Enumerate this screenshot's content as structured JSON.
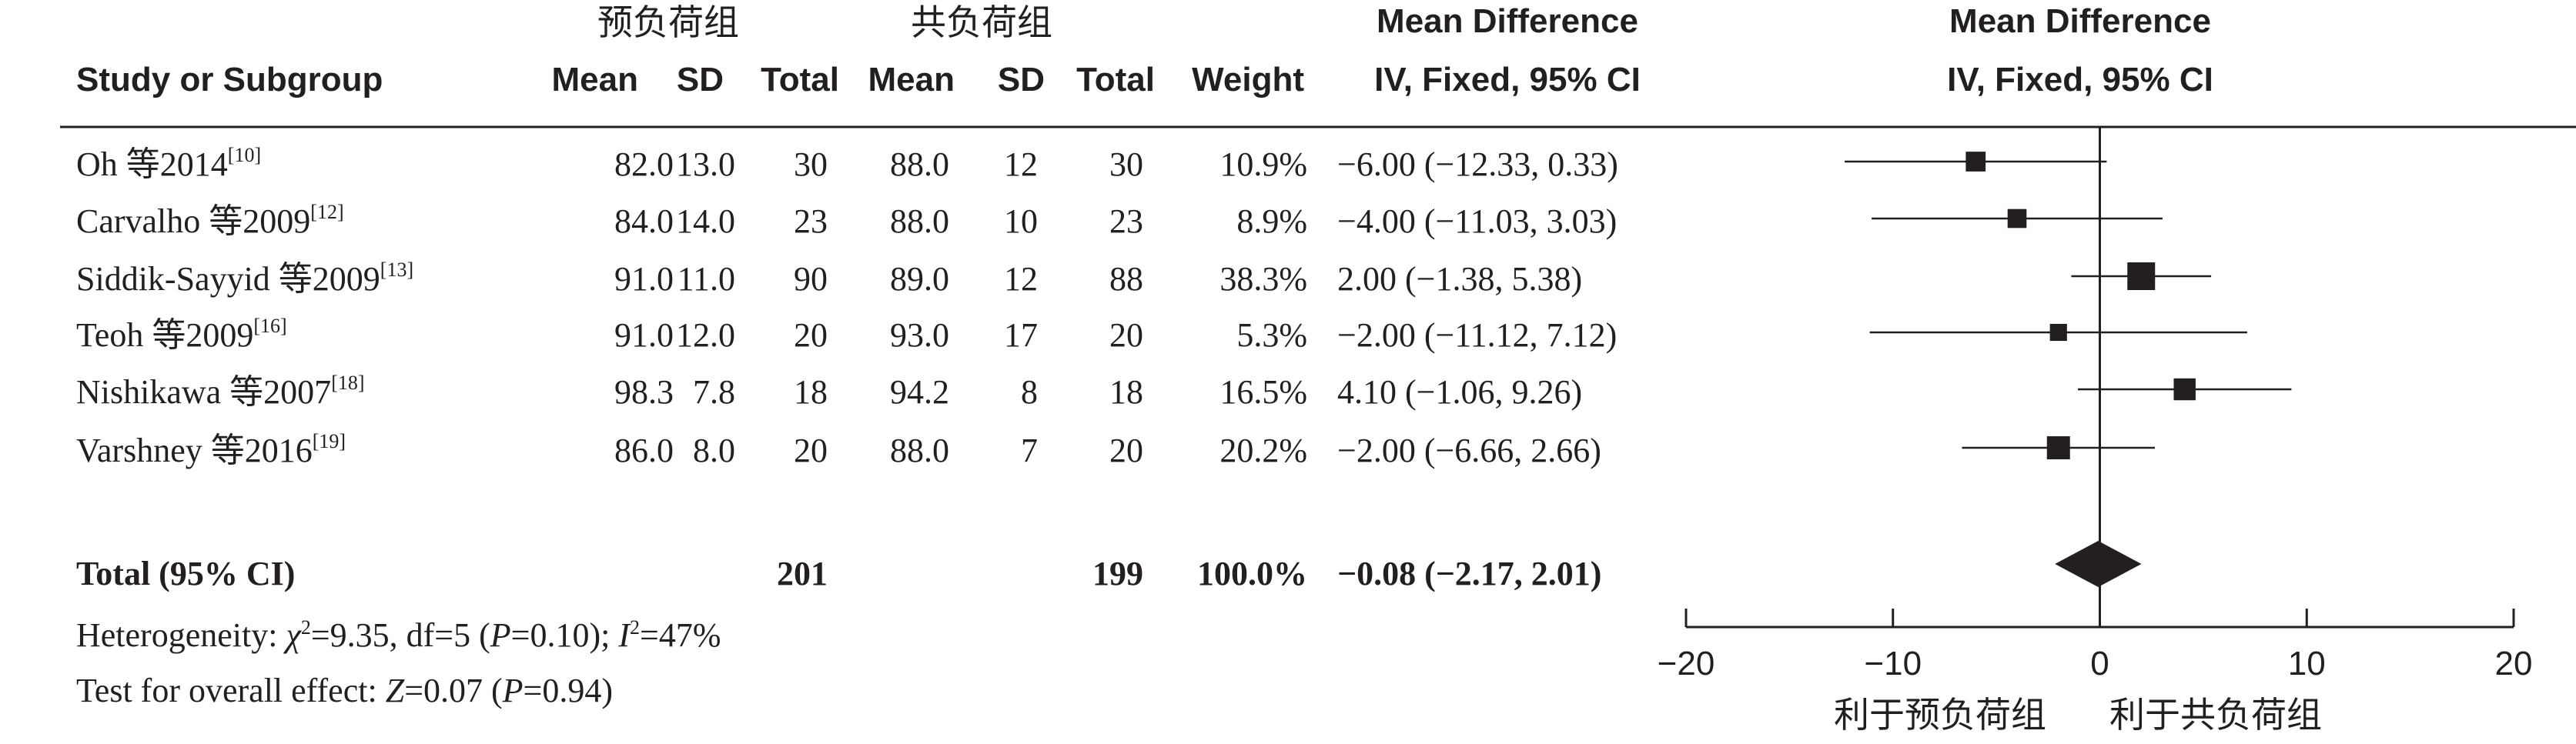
{
  "header": {
    "group1": "预负荷组",
    "group2": "共负荷组",
    "study_col": "Study or Subgroup",
    "mean1": "Mean",
    "sd1": "SD",
    "total1": "Total",
    "mean2": "Mean",
    "sd2": "SD",
    "total2": "Total",
    "weight": "Weight",
    "md_title": "Mean Difference",
    "md_method": "IV, Fixed, 95% CI",
    "plot_title": "Mean Difference",
    "plot_method": "IV, Fixed, 95% CI"
  },
  "rows": [
    {
      "study": "Oh 等2014",
      "ref": "[10]",
      "mean1": "82.0",
      "sd1": "13.0",
      "total1": "30",
      "mean2": "88.0",
      "sd2": "12",
      "total2": "30",
      "weight": "10.9%",
      "ci": "−6.00 (−12.33, 0.33)"
    },
    {
      "study": "Carvalho 等2009",
      "ref": "[12]",
      "mean1": "84.0",
      "sd1": "14.0",
      "total1": "23",
      "mean2": "88.0",
      "sd2": "10",
      "total2": "23",
      "weight": "8.9%",
      "ci": "−4.00 (−11.03, 3.03)"
    },
    {
      "study": "Siddik-Sayyid 等2009",
      "ref": "[13]",
      "mean1": "91.0",
      "sd1": "11.0",
      "total1": "90",
      "mean2": "89.0",
      "sd2": "12",
      "total2": "88",
      "weight": "38.3%",
      "ci": "2.00 (−1.38, 5.38)"
    },
    {
      "study": "Teoh 等2009",
      "ref": "[16]",
      "mean1": "91.0",
      "sd1": "12.0",
      "total1": "20",
      "mean2": "93.0",
      "sd2": "17",
      "total2": "20",
      "weight": "5.3%",
      "ci": "−2.00 (−11.12, 7.12)"
    },
    {
      "study": "Nishikawa 等2007",
      "ref": "[18]",
      "mean1": "98.3",
      "sd1": "7.8",
      "total1": "18",
      "mean2": "94.2",
      "sd2": "8",
      "total2": "18",
      "weight": "16.5%",
      "ci": "4.10 (−1.06, 9.26)"
    },
    {
      "study": "Varshney 等2016",
      "ref": "[19]",
      "mean1": "86.0",
      "sd1": "8.0",
      "total1": "20",
      "mean2": "88.0",
      "sd2": "7",
      "total2": "20",
      "weight": "20.2%",
      "ci": "−2.00 (−6.66, 2.66)"
    }
  ],
  "total": {
    "label": "Total (95% CI)",
    "total1": "201",
    "total2": "199",
    "weight": "100.0%",
    "ci": "−0.08 (−2.17, 2.01)"
  },
  "footer": {
    "het_prefix": "Heterogeneity: ",
    "het_chi": "χ",
    "het_chi_sup": "2",
    "het_mid": "=9.35, df=5 (",
    "het_p": "P",
    "het_pval": "=0.10); ",
    "het_i": "I",
    "het_i_sup": "2",
    "het_ival": "=47%",
    "test_prefix": "Test for overall effect: ",
    "test_z": "Z",
    "test_zval": "=0.07 (",
    "test_p": "P",
    "test_pval": "=0.94)"
  },
  "chart_data": {
    "type": "forest",
    "studies": [
      {
        "label": "Oh 等2014",
        "estimate": -6.0,
        "ci_low": -12.33,
        "ci_high": 0.33,
        "weight": 10.9
      },
      {
        "label": "Carvalho 等2009",
        "estimate": -4.0,
        "ci_low": -11.03,
        "ci_high": 3.03,
        "weight": 8.9
      },
      {
        "label": "Siddik-Sayyid 等2009",
        "estimate": 2.0,
        "ci_low": -1.38,
        "ci_high": 5.38,
        "weight": 38.3
      },
      {
        "label": "Teoh 等2009",
        "estimate": -2.0,
        "ci_low": -11.12,
        "ci_high": 7.12,
        "weight": 5.3
      },
      {
        "label": "Nishikawa 等2007",
        "estimate": 4.1,
        "ci_low": -1.06,
        "ci_high": 9.26,
        "weight": 16.5
      },
      {
        "label": "Varshney 等2016",
        "estimate": -2.0,
        "ci_low": -6.66,
        "ci_high": 2.66,
        "weight": 20.2
      }
    ],
    "pooled": {
      "estimate": -0.08,
      "ci_low": -2.17,
      "ci_high": 2.01
    },
    "xlim": [
      -20,
      20
    ],
    "xticks": [
      "−20",
      "−10",
      "0",
      "10",
      "20"
    ],
    "xtick_values": [
      -20,
      -10,
      0,
      10,
      20
    ],
    "favours_left": "利于预负荷组",
    "favours_right": "利于共负荷组",
    "color": "#231f20"
  }
}
